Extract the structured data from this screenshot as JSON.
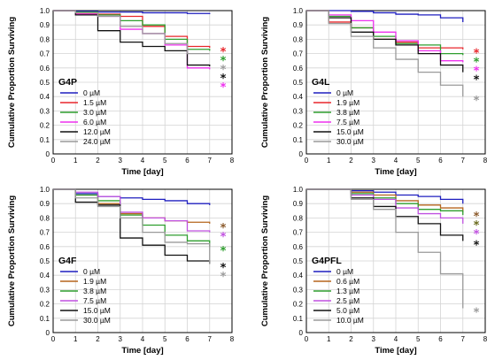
{
  "chart_data": [
    {
      "type": "line",
      "panel_label": "G4P",
      "xlabel": "Time [day]",
      "ylabel": "Cumulative Proportion Surviving",
      "xlim": [
        0,
        8
      ],
      "ylim": [
        0,
        1.0
      ],
      "xticks": [
        0,
        1,
        2,
        3,
        4,
        5,
        6,
        7,
        8
      ],
      "yticks": [
        0,
        0.1,
        0.2,
        0.3,
        0.4,
        0.5,
        0.6,
        0.7,
        0.8,
        0.9,
        1.0
      ],
      "legend_position": "bottom-left",
      "series": [
        {
          "name": "0 µM",
          "color": "#1f1fbf",
          "t": [
            0,
            1,
            2,
            3,
            4,
            5,
            6,
            7
          ],
          "s": [
            1.0,
            0.995,
            0.99,
            0.99,
            0.985,
            0.985,
            0.98,
            0.975
          ],
          "star": ""
        },
        {
          "name": "1.5 µM",
          "color": "#e8262b",
          "t": [
            0,
            1,
            2,
            3,
            4,
            5,
            6,
            7
          ],
          "s": [
            1.0,
            0.98,
            0.975,
            0.96,
            0.89,
            0.82,
            0.75,
            0.74
          ],
          "star": "*",
          "star_color": "#e8262b"
        },
        {
          "name": "3.0 µM",
          "color": "#2e9e2e",
          "t": [
            0,
            1,
            2,
            3,
            4,
            5,
            6,
            7
          ],
          "s": [
            1.0,
            0.99,
            0.97,
            0.93,
            0.9,
            0.8,
            0.73,
            0.72
          ],
          "star": "*",
          "star_color": "#2e9e2e"
        },
        {
          "name": "6.0 µM",
          "color": "#ee30ee",
          "t": [
            0,
            1,
            2,
            3,
            4,
            5,
            6,
            7
          ],
          "s": [
            1.0,
            0.975,
            0.96,
            0.87,
            0.84,
            0.76,
            0.6,
            0.59
          ],
          "star": "*",
          "star_color": "#ee30ee"
        },
        {
          "name": "12.0 µM",
          "color": "#111111",
          "t": [
            0,
            1,
            2,
            3,
            4,
            5,
            6,
            7
          ],
          "s": [
            1.0,
            0.97,
            0.86,
            0.78,
            0.75,
            0.72,
            0.62,
            0.61
          ],
          "star": "*",
          "star_color": "#111111"
        },
        {
          "name": "24.0 µM",
          "color": "#9a9a9a",
          "t": [
            0,
            1,
            2,
            3,
            4,
            5,
            6,
            7
          ],
          "s": [
            1.0,
            0.985,
            0.96,
            0.89,
            0.84,
            0.77,
            0.7,
            0.7
          ],
          "star": "*",
          "star_color": "#9a9a9a"
        }
      ]
    },
    {
      "type": "line",
      "panel_label": "G4L",
      "xlabel": "Time [day]",
      "ylabel": "Cumulative Proportion Surviving",
      "xlim": [
        0,
        8
      ],
      "ylim": [
        0,
        1.0
      ],
      "xticks": [
        0,
        1,
        2,
        3,
        4,
        5,
        6,
        7,
        8
      ],
      "yticks": [
        0,
        0.1,
        0.2,
        0.3,
        0.4,
        0.5,
        0.6,
        0.7,
        0.8,
        0.9,
        1.0
      ],
      "legend_position": "bottom-left",
      "series": [
        {
          "name": "0 µM",
          "color": "#1f1fbf",
          "t": [
            0,
            1,
            2,
            3,
            4,
            5,
            6,
            7
          ],
          "s": [
            1.0,
            1.0,
            0.995,
            0.985,
            0.975,
            0.97,
            0.95,
            0.92
          ],
          "star": ""
        },
        {
          "name": "1.9 µM",
          "color": "#e8262b",
          "t": [
            0,
            1,
            2,
            3,
            4,
            5,
            6,
            7
          ],
          "s": [
            1.0,
            0.92,
            0.88,
            0.8,
            0.78,
            0.74,
            0.74,
            0.73
          ],
          "star": "*",
          "star_color": "#e8262b"
        },
        {
          "name": "3.8 µM",
          "color": "#2e9e2e",
          "t": [
            0,
            1,
            2,
            3,
            4,
            5,
            6,
            7
          ],
          "s": [
            1.0,
            0.96,
            0.88,
            0.82,
            0.77,
            0.76,
            0.7,
            0.69
          ],
          "star": "*",
          "star_color": "#2e9e2e"
        },
        {
          "name": "7.5 µM",
          "color": "#ee30ee",
          "t": [
            0,
            1,
            2,
            3,
            4,
            5,
            6,
            7
          ],
          "s": [
            1.0,
            0.97,
            0.93,
            0.85,
            0.79,
            0.72,
            0.65,
            0.64
          ],
          "star": "*",
          "star_color": "#ee30ee"
        },
        {
          "name": "15.0 µM",
          "color": "#111111",
          "t": [
            0,
            1,
            2,
            3,
            4,
            5,
            6,
            7
          ],
          "s": [
            1.0,
            0.95,
            0.85,
            0.8,
            0.76,
            0.7,
            0.62,
            0.57
          ],
          "star": "*",
          "star_color": "#111111"
        },
        {
          "name": "30.0 µM",
          "color": "#9a9a9a",
          "t": [
            0,
            1,
            2,
            3,
            4,
            5,
            6,
            7
          ],
          "s": [
            1.0,
            0.91,
            0.82,
            0.74,
            0.66,
            0.57,
            0.48,
            0.4
          ],
          "star": "*",
          "star_color": "#9a9a9a"
        }
      ]
    },
    {
      "type": "line",
      "panel_label": "G4F",
      "xlabel": "Time [day]",
      "ylabel": "Cumulative Proportion Surviving",
      "xlim": [
        0,
        8
      ],
      "ylim": [
        0,
        1.0
      ],
      "xticks": [
        0,
        1,
        2,
        3,
        4,
        5,
        6,
        7,
        8
      ],
      "yticks": [
        0,
        0.1,
        0.2,
        0.3,
        0.4,
        0.5,
        0.6,
        0.7,
        0.8,
        0.9,
        1.0
      ],
      "legend_position": "bottom-left",
      "series": [
        {
          "name": "0 µM",
          "color": "#1f1fbf",
          "t": [
            0,
            1,
            2,
            3,
            4,
            5,
            6,
            7
          ],
          "s": [
            1.0,
            0.97,
            0.95,
            0.94,
            0.93,
            0.92,
            0.9,
            0.89
          ],
          "star": ""
        },
        {
          "name": "1.9 µM",
          "color": "#b5651d",
          "t": [
            0,
            1,
            2,
            3,
            4,
            5,
            6,
            7
          ],
          "s": [
            1.0,
            0.96,
            0.9,
            0.83,
            0.8,
            0.78,
            0.77,
            0.76
          ],
          "star": "*",
          "star_color": "#8b5a2b"
        },
        {
          "name": "3.8 µM",
          "color": "#2e9e2e",
          "t": [
            0,
            1,
            2,
            3,
            4,
            5,
            6,
            7
          ],
          "s": [
            1.0,
            0.96,
            0.92,
            0.82,
            0.75,
            0.68,
            0.64,
            0.6
          ],
          "star": "*",
          "star_color": "#2e9e2e"
        },
        {
          "name": "7.5 µM",
          "color": "#c050e0",
          "t": [
            0,
            1,
            2,
            3,
            4,
            5,
            6,
            7
          ],
          "s": [
            1.0,
            0.98,
            0.95,
            0.84,
            0.8,
            0.78,
            0.71,
            0.7
          ],
          "star": "*",
          "star_color": "#c050e0"
        },
        {
          "name": "15.0 µM",
          "color": "#111111",
          "t": [
            0,
            1,
            2,
            3,
            4,
            5,
            6,
            7
          ],
          "s": [
            1.0,
            0.91,
            0.89,
            0.66,
            0.61,
            0.54,
            0.5,
            0.48
          ],
          "star": "*",
          "star_color": "#111111"
        },
        {
          "name": "30.0 µM",
          "color": "#9a9a9a",
          "t": [
            0,
            1,
            2,
            3,
            4,
            5,
            6,
            7
          ],
          "s": [
            1.0,
            0.94,
            0.88,
            0.8,
            0.7,
            0.63,
            0.62,
            0.48
          ],
          "star": "*",
          "star_color": "#9a9a9a"
        }
      ]
    },
    {
      "type": "line",
      "panel_label": "G4PFL",
      "xlabel": "Time [day]",
      "ylabel": "Cumulative Proportion Surviving",
      "xlim": [
        0,
        8
      ],
      "ylim": [
        0,
        1.0
      ],
      "xticks": [
        0,
        1,
        2,
        3,
        4,
        5,
        6,
        7,
        8
      ],
      "yticks": [
        0,
        0.1,
        0.2,
        0.3,
        0.4,
        0.5,
        0.6,
        0.7,
        0.8,
        0.9,
        1.0
      ],
      "legend_position": "bottom-left",
      "series": [
        {
          "name": "0 µM",
          "color": "#1f1fbf",
          "t": [
            0,
            1,
            2,
            3,
            4,
            5,
            6,
            7
          ],
          "s": [
            1.0,
            1.0,
            0.99,
            0.98,
            0.96,
            0.95,
            0.93,
            0.9
          ],
          "star": ""
        },
        {
          "name": "0.6 µM",
          "color": "#b5651d",
          "t": [
            0,
            1,
            2,
            3,
            4,
            5,
            6,
            7
          ],
          "s": [
            1.0,
            1.0,
            0.98,
            0.96,
            0.92,
            0.89,
            0.87,
            0.84
          ],
          "star": "*",
          "star_color": "#8b5a2b"
        },
        {
          "name": "1.3 µM",
          "color": "#2e9e2e",
          "t": [
            0,
            1,
            2,
            3,
            4,
            5,
            6,
            7
          ],
          "s": [
            1.0,
            1.0,
            0.97,
            0.94,
            0.9,
            0.86,
            0.85,
            0.82
          ],
          "star": "*",
          "star_color": "#6b6b1e"
        },
        {
          "name": "2.5 µM",
          "color": "#c050e0",
          "t": [
            0,
            1,
            2,
            3,
            4,
            5,
            6,
            7
          ],
          "s": [
            1.0,
            1.0,
            0.96,
            0.93,
            0.87,
            0.83,
            0.8,
            0.76
          ],
          "star": "*",
          "star_color": "#c050e0"
        },
        {
          "name": "5.0 µM",
          "color": "#111111",
          "t": [
            0,
            1,
            2,
            3,
            4,
            5,
            6,
            7
          ],
          "s": [
            1.0,
            1.0,
            0.94,
            0.88,
            0.81,
            0.76,
            0.68,
            0.64
          ],
          "star": "*",
          "star_color": "#111111"
        },
        {
          "name": "10.0 µM",
          "color": "#9a9a9a",
          "t": [
            0,
            1,
            2,
            3,
            4,
            5,
            6,
            7
          ],
          "s": [
            1.0,
            1.0,
            0.93,
            0.86,
            0.7,
            0.56,
            0.41,
            0.17
          ],
          "star": "*",
          "star_color": "#9a9a9a"
        }
      ]
    }
  ]
}
